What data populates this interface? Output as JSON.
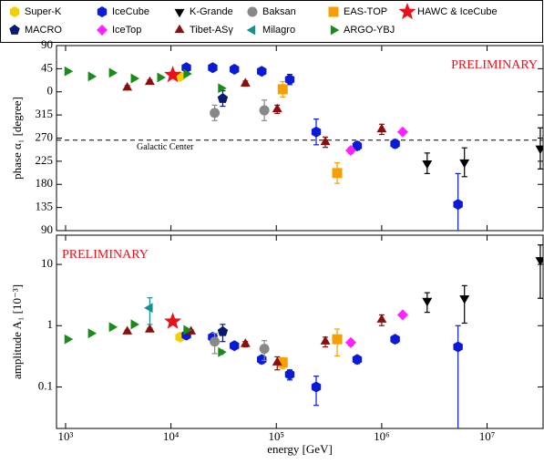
{
  "chart_data": {
    "type": "scatter",
    "xlabel": "energy [GeV]",
    "xscale": "log",
    "xlim": [
      820,
      34000000
    ],
    "xticks": [
      {
        "value": 1000,
        "label": "10³"
      },
      {
        "value": 10000,
        "label": "10⁴"
      },
      {
        "value": 100000,
        "label": "10⁵"
      },
      {
        "value": 1000000,
        "label": "10⁶"
      },
      {
        "value": 10000000,
        "label": "10⁷"
      }
    ],
    "panels": [
      {
        "key": "phase",
        "ylabel": "phase α₁ [degree]",
        "yscale": "linear",
        "ylim": [
          -270,
          90
        ],
        "yticks": [
          90,
          45,
          0,
          {
            "value": -45,
            "label": "315"
          },
          {
            "value": -90,
            "label": "270"
          },
          {
            "value": -135,
            "label": "225"
          },
          {
            "value": -180,
            "label": "180"
          },
          {
            "value": -225,
            "label": "135"
          },
          {
            "value": -270,
            "label": "90"
          }
        ],
        "annotation": "PRELIMINARY",
        "reference_line": {
          "text": "Galactic Center",
          "value": -94
        }
      },
      {
        "key": "amplitude",
        "ylabel": "amplitude A₁ [10⁻³]",
        "yscale": "log",
        "ylim": [
          0.021,
          30
        ],
        "yticks": [
          0.1,
          1,
          10
        ],
        "annotation": "PRELIMINARY"
      }
    ],
    "series": [
      {
        "name": "Super-K",
        "color": "#f2d000",
        "marker": "hexagon",
        "phase": {
          "x": [
            12200
          ],
          "values": [
            30
          ],
          "errors": [
            5
          ]
        },
        "amplitude": {
          "x": [
            12200
          ],
          "values": [
            0.65
          ],
          "errors": [
            0.05
          ]
        }
      },
      {
        "name": "IceCube",
        "color": "#0a1ad6",
        "marker": "hexagon",
        "phase": {
          "x": [
            14000,
            24900,
            40000,
            72700,
            134000,
            239000,
            585000,
            1340000,
            5300000
          ],
          "values": [
            47,
            47,
            44,
            40,
            24,
            -78,
            -105,
            -101,
            -219
          ],
          "errors": [
            4,
            4,
            4,
            5,
            10,
            25,
            8,
            8,
            60
          ]
        },
        "amplitude": {
          "x": [
            14000,
            24900,
            40000,
            72700,
            134000,
            239000,
            585000,
            1340000,
            5300000
          ],
          "values": [
            0.7,
            0.65,
            0.47,
            0.28,
            0.16,
            0.1,
            0.28,
            0.6,
            0.45
          ],
          "errors": [
            0.04,
            0.04,
            0.04,
            0.04,
            0.03,
            0.05,
            0.04,
            0.08,
            0.55
          ]
        }
      },
      {
        "name": "K-Grande",
        "color": "#000000",
        "marker": "triangle-down",
        "phase": {
          "x": [
            2700000,
            6100000,
            32000000
          ],
          "values": [
            -139,
            -137,
            -110
          ],
          "errors": [
            20,
            28,
            40
          ]
        },
        "amplitude": {
          "x": [
            2700000,
            6100000,
            32000000
          ],
          "values": [
            2.55,
            2.8,
            11.8
          ],
          "errors": [
            0.9,
            1.7,
            9
          ]
        }
      },
      {
        "name": "Baksan",
        "color": "#888888",
        "marker": "circle",
        "phase": {
          "x": [
            26000,
            77000
          ],
          "values": [
            -41,
            -36
          ],
          "errors": [
            15,
            20
          ]
        },
        "amplitude": {
          "x": [
            26000,
            77000
          ],
          "values": [
            0.55,
            0.42
          ],
          "errors": [
            0.2,
            0.15
          ]
        }
      },
      {
        "name": "EAS-TOP",
        "color": "#f5a000",
        "marker": "square",
        "phase": {
          "x": [
            115000,
            378000
          ],
          "values": [
            5,
            -158
          ],
          "errors": [
            15,
            20
          ]
        },
        "amplitude": {
          "x": [
            115000,
            378000
          ],
          "values": [
            0.25,
            0.6
          ],
          "errors": [
            0.05,
            0.28
          ]
        }
      },
      {
        "name": "HAWC & IceCube",
        "color": "#e8101a",
        "marker": "star",
        "phase": {
          "x": [
            10400
          ],
          "values": [
            33
          ],
          "errors": [
            6
          ]
        },
        "amplitude": {
          "x": [
            10400
          ],
          "values": [
            1.17
          ],
          "errors": [
            0.1
          ]
        }
      },
      {
        "name": "MACRO",
        "color": "#0a1a70",
        "marker": "pentagon",
        "phase": {
          "x": [
            31000
          ],
          "values": [
            -13
          ],
          "errors": [
            15
          ]
        },
        "amplitude": {
          "x": [
            31000
          ],
          "values": [
            0.8
          ],
          "errors": [
            0.25
          ]
        }
      },
      {
        "name": "IceTop",
        "color": "#ff22ff",
        "marker": "diamond",
        "phase": {
          "x": [
            509000,
            1580000
          ],
          "values": [
            -114,
            -78
          ],
          "errors": [
            6,
            5
          ]
        },
        "amplitude": {
          "x": [
            509000,
            1580000
          ],
          "values": [
            0.53,
            1.5
          ],
          "errors": [
            0.06,
            0.12
          ]
        }
      },
      {
        "name": "Tibet-ASγ",
        "color": "#8b0e0e",
        "marker": "triangle-up",
        "phase": {
          "x": [
            3850,
            6300,
            50900,
            102000,
            292000,
            1000000
          ],
          "values": [
            8,
            19,
            16,
            -34,
            -98,
            -73
          ],
          "errors": [
            4,
            4,
            5,
            8,
            10,
            10
          ]
        },
        "amplitude": {
          "x": [
            3850,
            6300,
            15500,
            50900,
            102000,
            292000,
            1000000
          ],
          "values": [
            0.8,
            0.86,
            0.8,
            0.5,
            0.25,
            0.55,
            1.25
          ],
          "errors": [
            0.05,
            0.05,
            0.05,
            0.05,
            0.06,
            0.1,
            0.25
          ]
        }
      },
      {
        "name": "Milagro",
        "color": "#159090",
        "marker": "triangle-left",
        "amplitude": {
          "x": [
            6300
          ],
          "values": [
            1.95
          ],
          "errors": [
            0.9
          ]
        }
      },
      {
        "name": "ARGO-YBJ",
        "color": "#1a8a1a",
        "marker": "triangle-right",
        "phase": {
          "x": [
            1040,
            1740,
            2750,
            4430,
            7880,
            14000,
            29800
          ],
          "values": [
            40,
            30,
            37,
            26,
            28,
            35,
            7
          ],
          "errors": [
            3,
            3,
            3,
            3,
            3,
            3,
            3
          ]
        },
        "amplitude": {
          "x": [
            1040,
            1740,
            2750,
            4430,
            14000,
            29800
          ],
          "values": [
            0.6,
            0.75,
            0.95,
            1.05,
            0.85,
            0.37
          ],
          "errors": [
            0.03,
            0.03,
            0.04,
            0.05,
            0.05,
            0.03
          ]
        }
      }
    ]
  }
}
